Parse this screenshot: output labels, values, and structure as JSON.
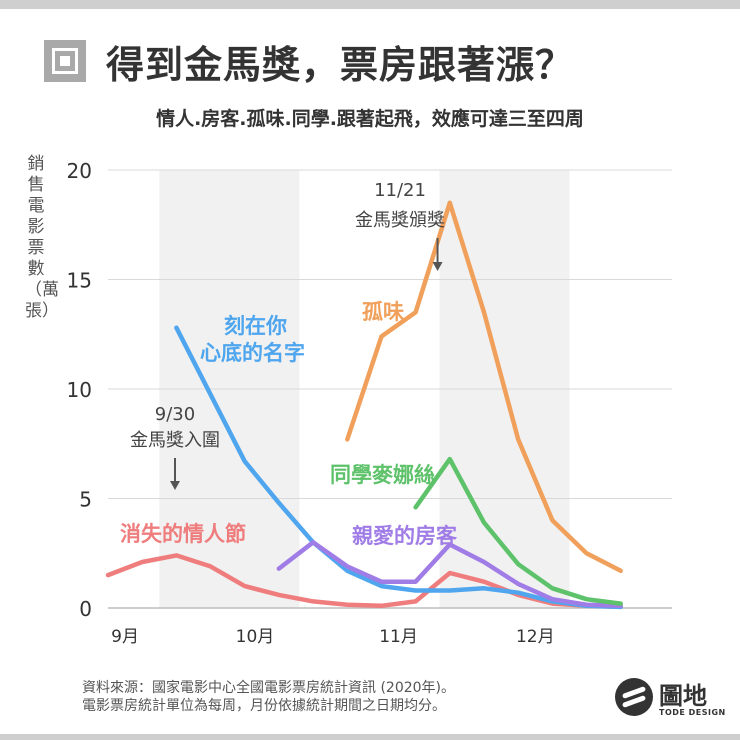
{
  "title": "得到金馬獎，票房跟著漲？",
  "subtitle": "情人.房客.孤味.同學.跟著起飛，效應可達三至四周",
  "source_lines": [
    "資料來源：國家電影中心全國電影票房統計資訊 (2020年)。",
    "電影票房統計單位為每周，月份依據統計期間之日期均分。"
  ],
  "logo": {
    "name": "圖地",
    "sub": "TODE DESIGN",
    "icon": "globe-swoosh-icon"
  },
  "colors": {
    "pink": "#ef7d7d",
    "blue": "#4fa6ee",
    "orange": "#f0a05a",
    "green": "#5dc26a",
    "purple": "#a07ce6",
    "band": "#f1f1f1",
    "grid": "#d9d9d9",
    "arrow": "#555555"
  },
  "chart_data": {
    "type": "line",
    "title": "得到金馬獎，票房跟著漲？",
    "subtitle": "情人.房客.孤味.同學.跟著起飛，效應可達三至四周",
    "ylabel": "銷售電影票數（萬張）",
    "xlabel": "",
    "ylim": [
      0,
      20
    ],
    "yticks": [
      0,
      5,
      10,
      15,
      20
    ],
    "xlim": [
      0,
      16.5
    ],
    "x_unit": "week index (weekly box office, Sep–Dec 2020)",
    "months": [
      {
        "label": "9月",
        "x": 0.5
      },
      {
        "label": "10月",
        "x": 4.3
      },
      {
        "label": "11月",
        "x": 8.5
      },
      {
        "label": "12月",
        "x": 12.5
      }
    ],
    "shaded_bands": [
      [
        1.5,
        5.6
      ],
      [
        9.7,
        13.5
      ]
    ],
    "grid": true,
    "series": [
      {
        "name": "消失的情人節",
        "color": "#ef7d7d",
        "x": [
          0,
          1,
          2,
          3,
          4,
          5,
          6,
          7,
          8,
          9,
          10,
          11,
          12,
          13,
          14,
          15
        ],
        "values": [
          1.5,
          2.1,
          2.4,
          1.9,
          1.0,
          0.6,
          0.3,
          0.15,
          0.1,
          0.3,
          1.6,
          1.2,
          0.6,
          0.2,
          0.1,
          0.05
        ]
      },
      {
        "name": "刻在你心底的名字",
        "color": "#4fa6ee",
        "x": [
          2,
          4,
          5,
          6,
          7,
          8,
          9,
          10,
          11,
          12,
          13,
          14,
          15
        ],
        "values": [
          12.8,
          6.7,
          4.8,
          3.0,
          1.7,
          1.0,
          0.8,
          0.8,
          0.9,
          0.7,
          0.3,
          0.1,
          0.05
        ]
      },
      {
        "name": "親愛的房客",
        "color": "#a07ce6",
        "x": [
          5,
          6,
          7,
          8,
          9,
          10,
          11,
          12,
          13,
          14,
          15
        ],
        "values": [
          1.8,
          3.0,
          1.9,
          1.2,
          1.2,
          2.9,
          2.1,
          1.1,
          0.4,
          0.15,
          0.1
        ]
      },
      {
        "name": "同學麥娜絲",
        "color": "#5dc26a",
        "x": [
          9,
          10,
          11,
          12,
          13,
          14,
          15
        ],
        "values": [
          4.6,
          6.8,
          3.9,
          2.0,
          0.9,
          0.4,
          0.2
        ]
      },
      {
        "name": "孤味",
        "color": "#f0a05a",
        "x": [
          7,
          8,
          9,
          10,
          11,
          12,
          13,
          14,
          15
        ],
        "values": [
          7.7,
          12.4,
          13.5,
          18.5,
          13.5,
          7.7,
          4.0,
          2.5,
          1.7
        ]
      }
    ],
    "annotations": [
      {
        "lines": [
          "9/30",
          "金馬獎入圍"
        ],
        "x": 1.5
      },
      {
        "lines": [
          "11/21",
          "金馬獎頒獎"
        ],
        "x": 9.7
      }
    ]
  }
}
